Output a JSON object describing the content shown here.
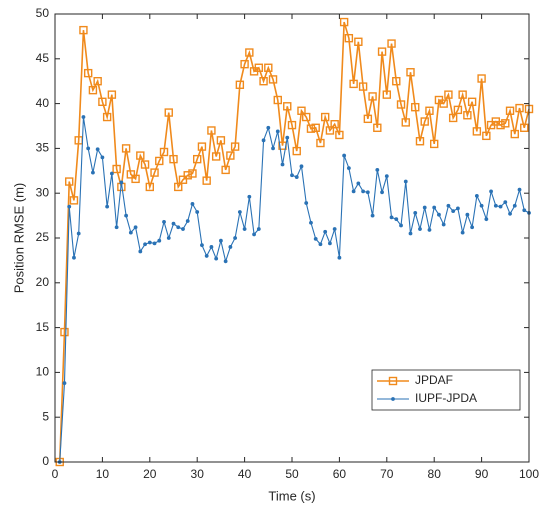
{
  "chart_data": {
    "type": "line",
    "x_label": "Time (s)",
    "y_label": "Position RMSE (m)",
    "x": [
      1,
      2,
      3,
      4,
      5,
      6,
      7,
      8,
      9,
      10,
      11,
      12,
      13,
      14,
      15,
      16,
      17,
      18,
      19,
      20,
      21,
      22,
      23,
      24,
      25,
      26,
      27,
      28,
      29,
      30,
      31,
      32,
      33,
      34,
      35,
      36,
      37,
      38,
      39,
      40,
      41,
      42,
      43,
      44,
      45,
      46,
      47,
      48,
      49,
      50,
      51,
      52,
      53,
      54,
      55,
      56,
      57,
      58,
      59,
      60,
      61,
      62,
      63,
      64,
      65,
      66,
      67,
      68,
      69,
      70,
      71,
      72,
      73,
      74,
      75,
      76,
      77,
      78,
      79,
      80,
      81,
      82,
      83,
      84,
      85,
      86,
      87,
      88,
      89,
      90,
      91,
      92,
      93,
      94,
      95,
      96,
      97,
      98,
      99,
      100
    ],
    "series": [
      {
        "name": "JPDAF",
        "color": "#f08a1c",
        "marker": "square",
        "values": [
          0,
          14.5,
          31.3,
          29.2,
          35.9,
          48.2,
          43.4,
          41.5,
          42.5,
          40.2,
          38.5,
          41,
          32.7,
          30.7,
          35,
          32.1,
          31.6,
          34.2,
          33.2,
          30.7,
          32.3,
          33.6,
          34.6,
          39,
          33.8,
          30.7,
          31.5,
          32,
          32.2,
          33.8,
          35.2,
          31.4,
          37,
          34.1,
          35.9,
          32.6,
          34.2,
          35.2,
          42.1,
          44.4,
          45.7,
          43.6,
          44,
          42.5,
          44,
          42.7,
          40.4,
          35.3,
          39.7,
          37.6,
          34.7,
          39.2,
          38.5,
          37.2,
          37.3,
          35.6,
          38.5,
          37,
          37.7,
          36.5,
          49.1,
          47.3,
          42.2,
          46.9,
          41.9,
          38.3,
          40.8,
          37.3,
          45.8,
          41,
          46.7,
          42.5,
          39.9,
          37.9,
          43.5,
          39.6,
          35.8,
          38,
          39.2,
          35.5,
          40.4,
          40,
          41,
          38.4,
          39.3,
          41,
          38.7,
          40.2,
          36.9,
          42.8,
          36.4,
          37.6,
          38,
          37.6,
          37.8,
          39.2,
          36.6,
          39.5,
          37.3,
          39.4
        ]
      },
      {
        "name": "IUPF-JPDA",
        "color": "#2a72b5",
        "marker": "dot",
        "values": [
          0,
          8.8,
          28.5,
          22.8,
          25.5,
          38.5,
          35,
          32.3,
          34.9,
          34,
          28.5,
          32.2,
          26.2,
          31.2,
          27.5,
          25.6,
          26.2,
          23.5,
          24.3,
          24.5,
          24.4,
          24.7,
          26.8,
          25,
          26.6,
          26.2,
          26,
          26.9,
          28.8,
          27.9,
          24.2,
          23,
          24,
          22.7,
          24.7,
          22.4,
          24,
          25,
          27.9,
          26,
          29.6,
          25.4,
          26,
          35.9,
          37.3,
          35,
          36.9,
          33.2,
          36.2,
          32,
          31.8,
          33,
          28.9,
          26.7,
          24.9,
          24.3,
          25.7,
          24.4,
          26,
          22.8,
          34.2,
          32.8,
          30.2,
          31.1,
          30.2,
          30.1,
          27.5,
          32.6,
          30.1,
          31.9,
          27.3,
          27.1,
          26.4,
          31.3,
          25.5,
          27.8,
          26,
          28.4,
          25.9,
          28.4,
          27.6,
          26.5,
          28.6,
          28,
          28.3,
          25.6,
          27.6,
          26.2,
          29.7,
          28.6,
          27.1,
          30.2,
          28.6,
          28.5,
          29,
          27.7,
          28.6,
          30.4,
          28.1,
          27.8
        ]
      }
    ],
    "xlim": [
      0,
      100
    ],
    "xticks": [
      0,
      10,
      20,
      30,
      40,
      50,
      60,
      70,
      80,
      90,
      100
    ],
    "ylim": [
      0,
      50
    ],
    "yticks": [
      0,
      5,
      10,
      15,
      20,
      25,
      30,
      35,
      40,
      45,
      50
    ],
    "legend": "lower right",
    "grid": false
  }
}
